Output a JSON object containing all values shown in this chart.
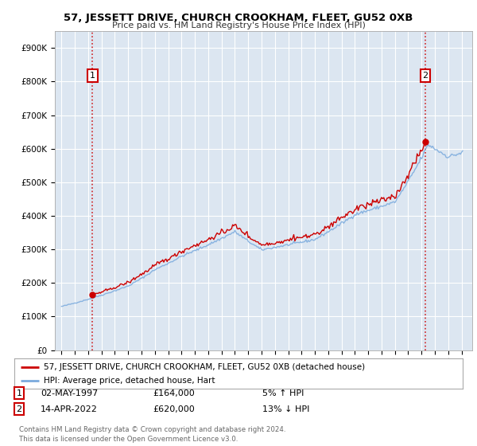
{
  "title": "57, JESSETT DRIVE, CHURCH CROOKHAM, FLEET, GU52 0XB",
  "subtitle": "Price paid vs. HM Land Registry's House Price Index (HPI)",
  "background_color": "#dce6f1",
  "plot_bg_color": "#dce6f1",
  "hpi_color": "#7aaadd",
  "price_color": "#cc0000",
  "legend_label_price": "57, JESSETT DRIVE, CHURCH CROOKHAM, FLEET, GU52 0XB (detached house)",
  "legend_label_hpi": "HPI: Average price, detached house, Hart",
  "annotation1_date": "02-MAY-1997",
  "annotation1_price": "£164,000",
  "annotation1_hpi": "5% ↑ HPI",
  "annotation2_date": "14-APR-2022",
  "annotation2_price": "£620,000",
  "annotation2_hpi": "13% ↓ HPI",
  "footer": "Contains HM Land Registry data © Crown copyright and database right 2024.\nThis data is licensed under the Open Government Licence v3.0.",
  "sale1_x": 1997.33,
  "sale1_y": 164000,
  "sale2_x": 2022.28,
  "sale2_y": 620000,
  "ylim_max": 950000,
  "yticks": [
    0,
    100000,
    200000,
    300000,
    400000,
    500000,
    600000,
    700000,
    800000,
    900000
  ],
  "ytick_labels": [
    "£0",
    "£100K",
    "£200K",
    "£300K",
    "£400K",
    "£500K",
    "£600K",
    "£700K",
    "£800K",
    "£900K"
  ],
  "xlim_min": 1994.5,
  "xlim_max": 2025.8
}
